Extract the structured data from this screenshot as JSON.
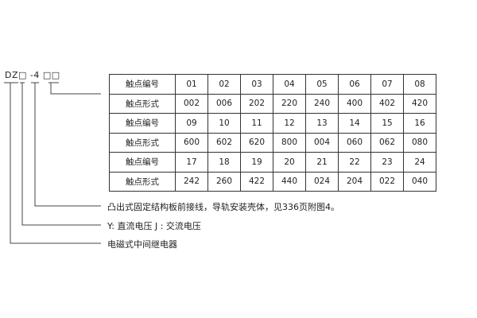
{
  "model_code": "DZ□ -4 □□",
  "table": {
    "rows": [
      [
        "触点编号",
        "01",
        "02",
        "03",
        "04",
        "05",
        "06",
        "07",
        "08"
      ],
      [
        "触点形式",
        "002",
        "006",
        "202",
        "220",
        "240",
        "400",
        "402",
        "420"
      ],
      [
        "触点编号",
        "09",
        "10",
        "11",
        "12",
        "13",
        "14",
        "15",
        "16"
      ],
      [
        "触点形式",
        "600",
        "602",
        "620",
        "800",
        "004",
        "060",
        "062",
        "080"
      ],
      [
        "触点编号",
        "17",
        "18",
        "19",
        "20",
        "21",
        "22",
        "23",
        "24"
      ],
      [
        "触点形式",
        "242",
        "260",
        "422",
        "440",
        "024",
        "204",
        "022",
        "040"
      ]
    ]
  },
  "notes": [
    "凸出式固定结构板前接线，导轨安装壳体，见336页附图4。",
    "Y: 直流电压   J : 交流电压",
    "电磁式中间继电器"
  ]
}
